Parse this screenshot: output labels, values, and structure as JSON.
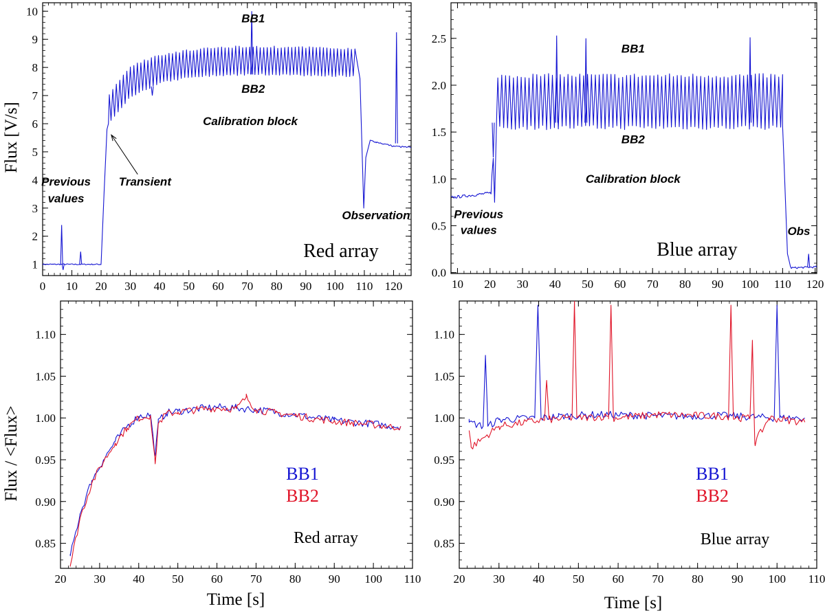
{
  "figure": {
    "ylabel_top": "Flux [V/s]",
    "ylabel_bottom": "Flux / <Flux>",
    "xlabel": "Time [s]"
  },
  "colors": {
    "blue": "#1414d2",
    "red": "#e01428",
    "axis": "#000000"
  },
  "chart_data": [
    {
      "id": "top-left",
      "type": "line",
      "panel_label": "Red array",
      "xlim": [
        0,
        126
      ],
      "ylim": [
        0.6,
        10.3
      ],
      "xticks": [
        0,
        10,
        20,
        30,
        40,
        50,
        60,
        70,
        80,
        90,
        100,
        110,
        120
      ],
      "yticks": [
        1,
        2,
        3,
        4,
        5,
        6,
        7,
        8,
        9,
        10
      ],
      "annotations": [
        {
          "text": "BB1",
          "x": 72,
          "y": 9.6
        },
        {
          "text": "BB2",
          "x": 72,
          "y": 7.1
        },
        {
          "text": "Calibration block",
          "x": 71,
          "y": 5.95
        },
        {
          "text": "Transient",
          "x": 35,
          "y": 3.8
        },
        {
          "text": "Previous",
          "x": 8,
          "y": 3.8
        },
        {
          "text": "values",
          "x": 8,
          "y": 3.2
        },
        {
          "text": "Observation",
          "x": 114,
          "y": 2.6
        }
      ],
      "arrow": {
        "from": [
          32.5,
          4.2
        ],
        "to": [
          23.5,
          5.6
        ]
      },
      "series": [
        {
          "color": "blue",
          "envelope": {
            "baseline": {
              "x": [
                0,
                20
              ],
              "y": 1.0
            },
            "rise": {
              "x": [
                20,
                22.5
              ],
              "y": [
                1.05,
                6.0
              ]
            },
            "upper": {
              "x": [
                22.5,
                30,
                40,
                50,
                60,
                70,
                80,
                90,
                100,
                107
              ],
              "y": [
                7.0,
                8.05,
                8.45,
                8.6,
                8.7,
                8.75,
                8.72,
                8.7,
                8.68,
                8.65
              ]
            },
            "lower": {
              "x": [
                22.5,
                30,
                40,
                50,
                60,
                70,
                80,
                90,
                100,
                107
              ],
              "y": [
                6.0,
                6.95,
                7.45,
                7.65,
                7.72,
                7.75,
                7.75,
                7.72,
                7.7,
                7.7
              ]
            },
            "observation": {
              "x": [
                107,
                108.5,
                109.8,
                110.5,
                112,
                114,
                120,
                126
              ],
              "y": [
                7.7,
                7.6,
                3.0,
                4.8,
                5.4,
                5.35,
                5.2,
                5.15
              ]
            },
            "spikes": [
              [
                6.5,
                2.4
              ],
              [
                7,
                0.8
              ],
              [
                13,
                1.45
              ],
              [
                71.5,
                10.0
              ],
              [
                121,
                9.25
              ],
              [
                37.5,
                7.0
              ]
            ]
          }
        }
      ]
    },
    {
      "id": "top-right",
      "type": "line",
      "panel_label": "Blue array",
      "xlim": [
        8,
        120.5
      ],
      "ylim": [
        -0.01,
        2.88
      ],
      "xticks": [
        10,
        20,
        30,
        40,
        50,
        60,
        70,
        80,
        90,
        100,
        110,
        120
      ],
      "yticks": [
        0.0,
        0.5,
        1.0,
        1.5,
        2.0,
        2.5
      ],
      "ytick_labels": [
        "0.0",
        "0.5",
        "1.0",
        "1.5",
        "2.0",
        "2.5"
      ],
      "annotations": [
        {
          "text": "BB1",
          "x": 64,
          "y": 2.35
        },
        {
          "text": "BB2",
          "x": 64,
          "y": 1.38
        },
        {
          "text": "Calibration block",
          "x": 64,
          "y": 0.96
        },
        {
          "text": "Previous",
          "x": 16.5,
          "y": 0.58
        },
        {
          "text": "values",
          "x": 16.5,
          "y": 0.41
        },
        {
          "text": "Obs",
          "x": 115,
          "y": 0.4
        }
      ],
      "series": [
        {
          "color": "blue",
          "envelope": {
            "baseline": {
              "x": [
                8,
                20.5
              ],
              "y": [
                0.8,
                0.85
              ]
            },
            "rise": {
              "x": [
                20.5,
                22
              ],
              "y": [
                0.7,
                1.6
              ]
            },
            "upper_y": 2.1,
            "lower_y": 1.55,
            "plateau_x": [
              22,
              110
            ],
            "obs": {
              "x": [
                110,
                111.5,
                112.5,
                120.5
              ],
              "y": [
                1.57,
                0.2,
                0.05,
                0.06
              ]
            },
            "spikes": [
              [
                40.5,
                2.53
              ],
              [
                49.5,
                2.5
              ],
              [
                100,
                2.51
              ],
              [
                21,
                1.23
              ],
              [
                118,
                0.2
              ]
            ]
          }
        }
      ]
    },
    {
      "id": "bottom-left",
      "type": "line",
      "panel_label": "Red array",
      "xlim": [
        20,
        110
      ],
      "ylim": [
        0.82,
        1.14
      ],
      "xticks": [
        20,
        30,
        40,
        50,
        60,
        70,
        80,
        90,
        100,
        110
      ],
      "yticks": [
        0.85,
        0.9,
        0.95,
        1.0,
        1.05,
        1.1
      ],
      "ytick_labels": [
        "0.85",
        "0.90",
        "0.95",
        "1.00",
        "1.05",
        "1.10"
      ],
      "legend": [
        "BB1",
        "BB2"
      ],
      "series": [
        {
          "name": "BB1",
          "color": "blue",
          "x": [
            22.5,
            25,
            28,
            31,
            34,
            37,
            40,
            43,
            44.2,
            45,
            47,
            50,
            55,
            60,
            65,
            70,
            75,
            80,
            85,
            90,
            95,
            100,
            105,
            107
          ],
          "y": [
            0.835,
            0.885,
            0.925,
            0.95,
            0.972,
            0.99,
            1.002,
            1.004,
            0.955,
            0.995,
            1.006,
            1.008,
            1.011,
            1.013,
            1.012,
            1.01,
            1.007,
            1.004,
            1.0,
            0.997,
            0.995,
            0.993,
            0.99,
            0.99
          ]
        },
        {
          "name": "BB2",
          "color": "red",
          "x": [
            22.5,
            25,
            28,
            31,
            34,
            37,
            40,
            43,
            44.2,
            45,
            47,
            50,
            55,
            60,
            65,
            67.5,
            70,
            75,
            80,
            85,
            90,
            95,
            100,
            105,
            107
          ],
          "y": [
            0.823,
            0.88,
            0.922,
            0.948,
            0.97,
            0.988,
            1.0,
            1.003,
            0.945,
            0.993,
            1.005,
            1.007,
            1.01,
            1.012,
            1.011,
            1.025,
            1.01,
            1.006,
            1.003,
            0.999,
            0.996,
            0.994,
            0.992,
            0.989,
            0.99
          ]
        }
      ]
    },
    {
      "id": "bottom-right",
      "type": "line",
      "panel_label": "Blue array",
      "xlim": [
        20,
        110
      ],
      "ylim": [
        0.82,
        1.14
      ],
      "xticks": [
        20,
        30,
        40,
        50,
        60,
        70,
        80,
        90,
        100,
        110
      ],
      "yticks": [
        0.85,
        0.9,
        0.95,
        1.0,
        1.05,
        1.1
      ],
      "ytick_labels": [
        "0.85",
        "0.90",
        "0.95",
        "1.00",
        "1.05",
        "1.10"
      ],
      "legend": [
        "BB1",
        "BB2"
      ],
      "series": [
        {
          "name": "BB1",
          "color": "blue",
          "x": [
            22.5,
            26,
            26.6,
            27.2,
            30,
            39,
            39.8,
            40.6,
            45,
            55,
            65,
            75,
            85,
            95,
            99.3,
            100,
            100.7,
            107
          ],
          "y": [
            0.995,
            0.99,
            1.075,
            0.99,
            0.998,
            1.0,
            1.135,
            1.0,
            1.002,
            1.004,
            1.003,
            1.002,
            1.003,
            1.001,
            1.0,
            1.135,
            1.0,
            1.0
          ]
        },
        {
          "name": "BB2",
          "color": "red",
          "x": [
            22.5,
            23,
            30,
            41.5,
            42,
            42.6,
            48.4,
            49,
            49.6,
            57.6,
            58.2,
            58.8,
            70,
            87.8,
            88.4,
            89,
            93.2,
            93.8,
            94.4,
            98,
            107
          ],
          "y": [
            0.985,
            0.965,
            0.99,
            0.998,
            1.045,
            0.998,
            1.0,
            1.14,
            1.0,
            1.002,
            1.135,
            1.0,
            1.004,
            1.002,
            1.135,
            1.0,
            1.0,
            1.093,
            0.97,
            1.0,
            0.995
          ]
        }
      ]
    }
  ]
}
